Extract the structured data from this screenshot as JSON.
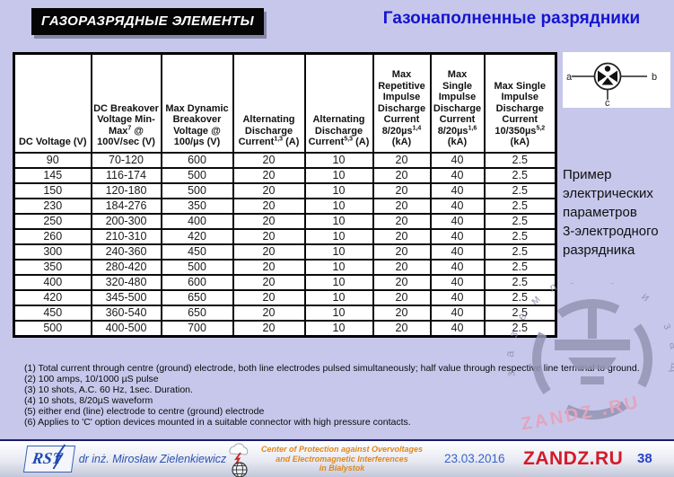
{
  "slide": {
    "badge_title": "ГАЗОРАЗРЯДНЫЕ ЭЛЕМЕНТЫ",
    "title": "Газонаполненные разрядники",
    "caption": "Пример\nэлектрических\nпараметров\n3-электродного\nразрядника"
  },
  "symbol": {
    "label_a": "a",
    "label_b": "b",
    "label_c": "c"
  },
  "table": {
    "headers": [
      "DC Voltage (V)",
      "DC Breakover Voltage Min-Max^7^ @ 100V/sec (V)",
      "Max Dynamic Breakover Voltage @ 100/µs (V)",
      "Alternating Discharge Current^1,3^ (A)",
      "Alternating Discharge Current^5,3^ (A)",
      "Max Repetitive Impulse Discharge Current 8/20µs^1,4^ (kA)",
      "Max Single Impulse Discharge Current 8/20µs^1,6^ (kA)",
      "Max Single Impulse Discharge Current 10/350µs^5,2^ (kA)"
    ],
    "rows": [
      [
        "90",
        "70-120",
        "600",
        "20",
        "10",
        "20",
        "40",
        "2.5"
      ],
      [
        "145",
        "116-174",
        "500",
        "20",
        "10",
        "20",
        "40",
        "2.5"
      ],
      [
        "150",
        "120-180",
        "500",
        "20",
        "10",
        "20",
        "40",
        "2.5"
      ],
      [
        "230",
        "184-276",
        "350",
        "20",
        "10",
        "20",
        "40",
        "2.5"
      ],
      [
        "250",
        "200-300",
        "400",
        "20",
        "10",
        "20",
        "40",
        "2.5"
      ],
      [
        "260",
        "210-310",
        "420",
        "20",
        "10",
        "20",
        "40",
        "2.5"
      ],
      [
        "300",
        "240-360",
        "450",
        "20",
        "10",
        "20",
        "40",
        "2.5"
      ],
      [
        "350",
        "280-420",
        "500",
        "20",
        "10",
        "20",
        "40",
        "2.5"
      ],
      [
        "400",
        "320-480",
        "600",
        "20",
        "10",
        "20",
        "40",
        "2.5"
      ],
      [
        "420",
        "345-500",
        "650",
        "20",
        "10",
        "20",
        "40",
        "2.5"
      ],
      [
        "450",
        "360-540",
        "650",
        "20",
        "10",
        "20",
        "40",
        "2.5"
      ],
      [
        "500",
        "400-500",
        "700",
        "20",
        "10",
        "20",
        "40",
        "2.5"
      ]
    ]
  },
  "footnotes": [
    "(1) Total current through centre (ground) electrode, both line electrodes pulsed simultaneously; half value through respective line terminal to ground.",
    "(2) 100 amps, 10/1000 µS pulse",
    "(3) 10 shots, A.C. 60 Hz, 1sec. Duration.",
    "(4) 10 shots, 8/20µS waveform",
    "(5) either end (line) electrode to centre (ground) electrode",
    "(6) Applies to 'C' option devices mounted in a suitable connector with high pressure contacts."
  ],
  "watermark": {
    "arc_text": "заземлено  и  защищено",
    "brand": "ZANDZ .RU"
  },
  "footer": {
    "logo": "RST",
    "author": "dr inż. Mirosław Zielenkiewicz",
    "center_line1": "Center of Protection against Overvoltages",
    "center_line2": "and Electromagnetic Interferences",
    "center_line3": "in Bialystok",
    "date": "23.03.2016",
    "site": "ZANDZ.RU",
    "page": "38"
  },
  "colors": {
    "slide_bg": "#c7c7ec",
    "title_blue": "#1414cf",
    "badge_bg": "#050505",
    "watermark_gray": "#9090b2",
    "watermark_pink": "#e9a0b4",
    "footer_orange": "#e0861a",
    "site_red": "#d41a2a"
  }
}
